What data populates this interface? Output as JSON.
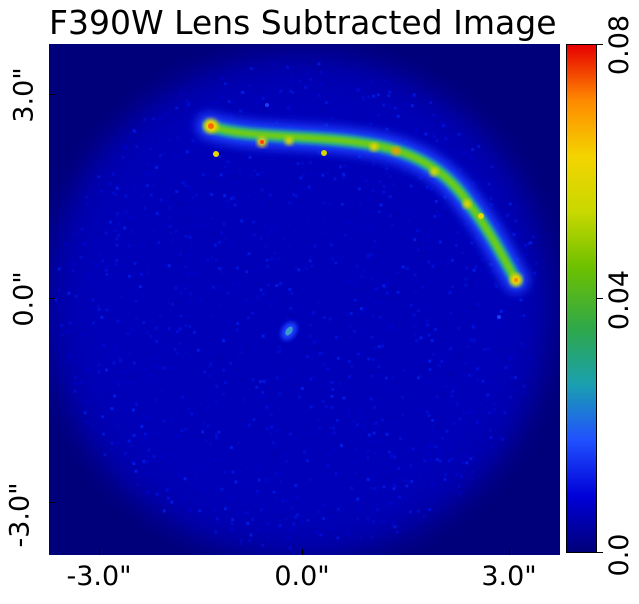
{
  "figure": {
    "title": "F390W Lens Subtracted Image",
    "x_ticks": [
      "-3.0\"",
      "0.0\"",
      "3.0\""
    ],
    "y_ticks": [
      "3.0\"",
      "0.0\"",
      "-3.0\""
    ],
    "colorbar": {
      "ticks": [
        "0.08",
        "0.04",
        "0.0"
      ],
      "range": [
        0.0,
        0.08
      ],
      "colormap": "jet",
      "colors": [
        "#00007a",
        "#0000d8",
        "#2050ff",
        "#1aa0b0",
        "#2ea84a",
        "#6cc000",
        "#c8d800",
        "#f4d400",
        "#ff8a00",
        "#e60000"
      ]
    },
    "background_color": "#00007a"
  }
}
